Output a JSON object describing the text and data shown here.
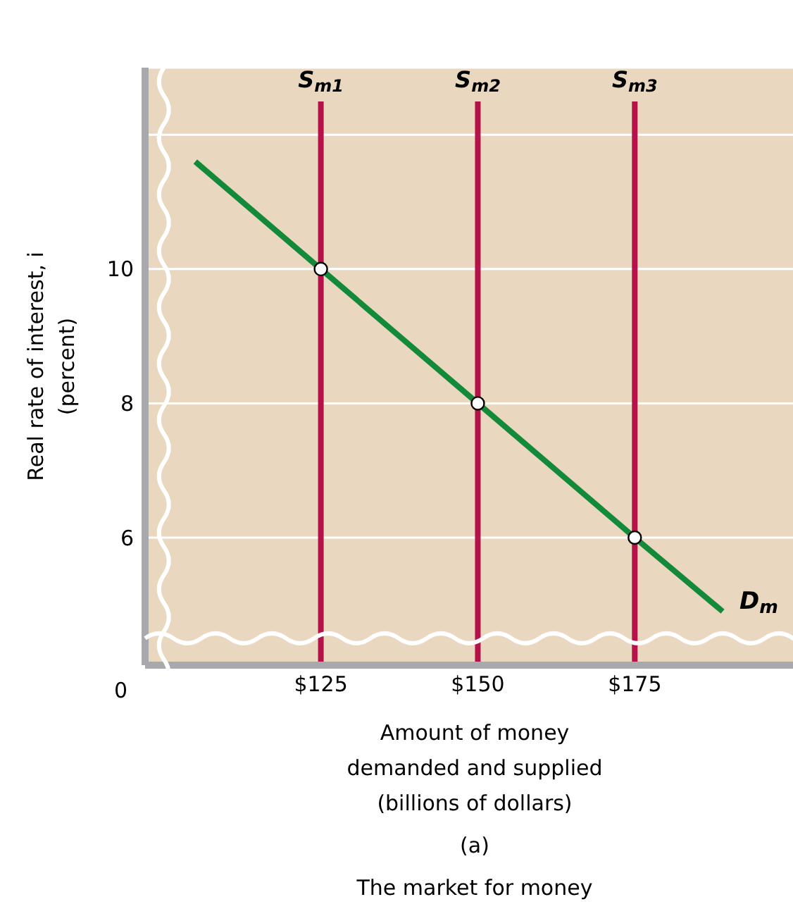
{
  "chart_data": {
    "type": "line",
    "xlabel": "Amount of money\ndemanded and supplied\n(billions of dollars)",
    "ylabel": "Real rate of interest, i\n(percent)",
    "xlim": [
      97,
      202
    ],
    "ylim": [
      4.1,
      13
    ],
    "xticks": [
      {
        "value": 125,
        "label": "$125"
      },
      {
        "value": 150,
        "label": "$150"
      },
      {
        "value": 175,
        "label": "$175"
      }
    ],
    "yticks": [
      6,
      8,
      10,
      {
        "value": 12,
        "label": null
      }
    ],
    "grid": "y",
    "legend": false,
    "series": [
      {
        "name": "D$_{m}$",
        "color": "#13893a",
        "marker": "none",
        "x": [
          105,
          125,
          150,
          175,
          189
        ],
        "values": [
          11.6,
          10,
          8,
          6,
          4.9
        ]
      },
      {
        "type": "scatter",
        "color": "#ffffff",
        "marker": "circle",
        "x": [
          125,
          150,
          175
        ],
        "values": [
          10,
          8,
          6
        ]
      }
    ],
    "ref_lines": [
      {
        "axis": "x",
        "value": 125,
        "label": "S$_{m1}$",
        "color": "#b5124a"
      },
      {
        "axis": "x",
        "value": 150,
        "label": "S$_{m2}$",
        "color": "#b5124a"
      },
      {
        "axis": "x",
        "value": 175,
        "label": "S$_{m3}$",
        "color": "#b5124a"
      }
    ],
    "annotations": [
      "0",
      "(a)",
      "The market for money"
    ]
  }
}
